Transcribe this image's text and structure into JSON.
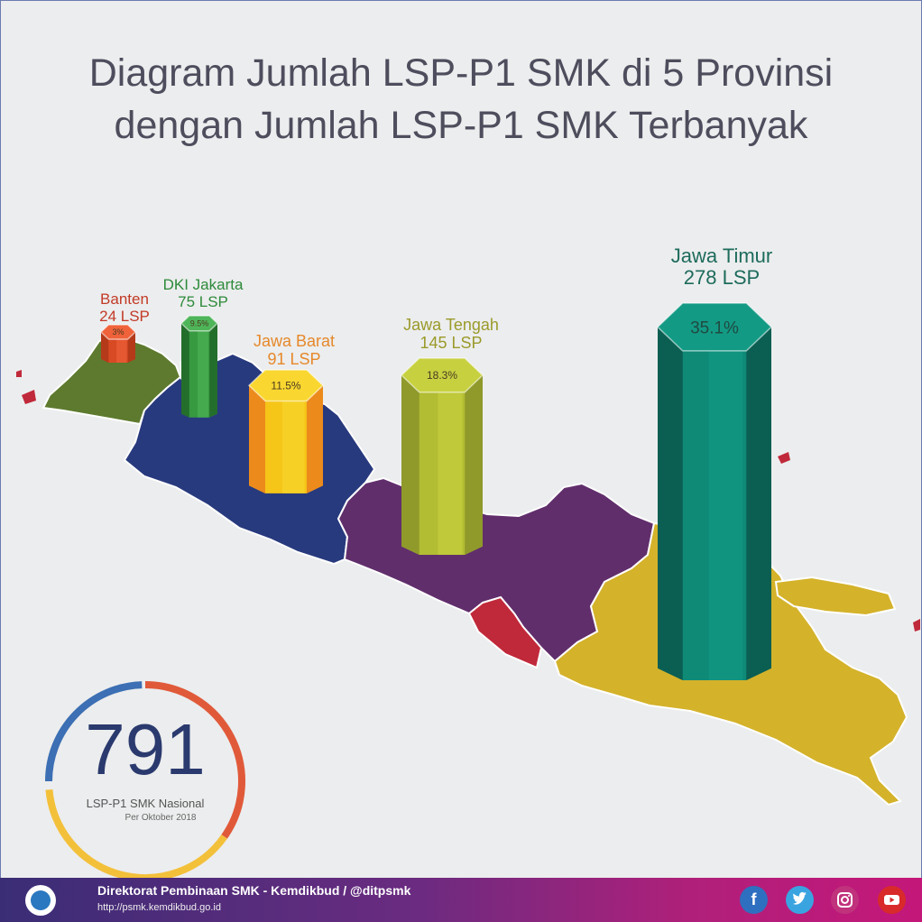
{
  "title": {
    "line1": "Diagram Jumlah LSP-P1 SMK di 5 Provinsi",
    "line2": "dengan Jumlah LSP-P1 SMK Terbanyak"
  },
  "chart_data": {
    "type": "bar",
    "title": "Diagram Jumlah LSP-P1 SMK di 5 Provinsi dengan Jumlah LSP-P1 SMK Terbanyak",
    "categories": [
      "Banten",
      "DKI Jakarta",
      "Jawa Barat",
      "Jawa Tengah",
      "Jawa Timur"
    ],
    "value_labels": [
      "24 LSP",
      "75 LSP",
      "91 LSP",
      "145 LSP",
      "278 LSP"
    ],
    "values": [
      24,
      75,
      91,
      145,
      278
    ],
    "unit": "LSP",
    "percent_labels": [
      "3%",
      "9.5%",
      "11.5%",
      "18.3%",
      "35.1%"
    ],
    "percents": [
      3,
      9.5,
      11.5,
      18.3,
      35.1
    ],
    "colors": [
      "#e8532b",
      "#3a9a44",
      "#f5c518",
      "#b9c334",
      "#1a9a86"
    ],
    "label_colors": [
      "#c23a26",
      "#2d8a3a",
      "#e6882a",
      "#9a9a2a",
      "#1d6b5c"
    ]
  },
  "total": {
    "value": "791",
    "label": "LSP-P1 SMK Nasional",
    "date": "Per Oktober 2018"
  },
  "footer": {
    "line1": "Direktorat Pembinaan SMK - Kemdikbud  / @ditpsmk",
    "line2": "http://psmk.kemdikbud.go.id",
    "social": {
      "facebook_glyph": "f"
    }
  },
  "icons": {
    "logo": "tut-wuri-handayani-logo",
    "social": [
      "facebook-icon",
      "twitter-icon",
      "instagram-icon",
      "youtube-icon"
    ]
  },
  "colors": {
    "banten": "#5d7a2e",
    "jakarta": "#c0293a",
    "jawa_barat": "#283a7e",
    "jawa_tengah": "#612e6c",
    "yogyakarta": "#c0293a",
    "jawa_timur": "#d4b22a"
  }
}
